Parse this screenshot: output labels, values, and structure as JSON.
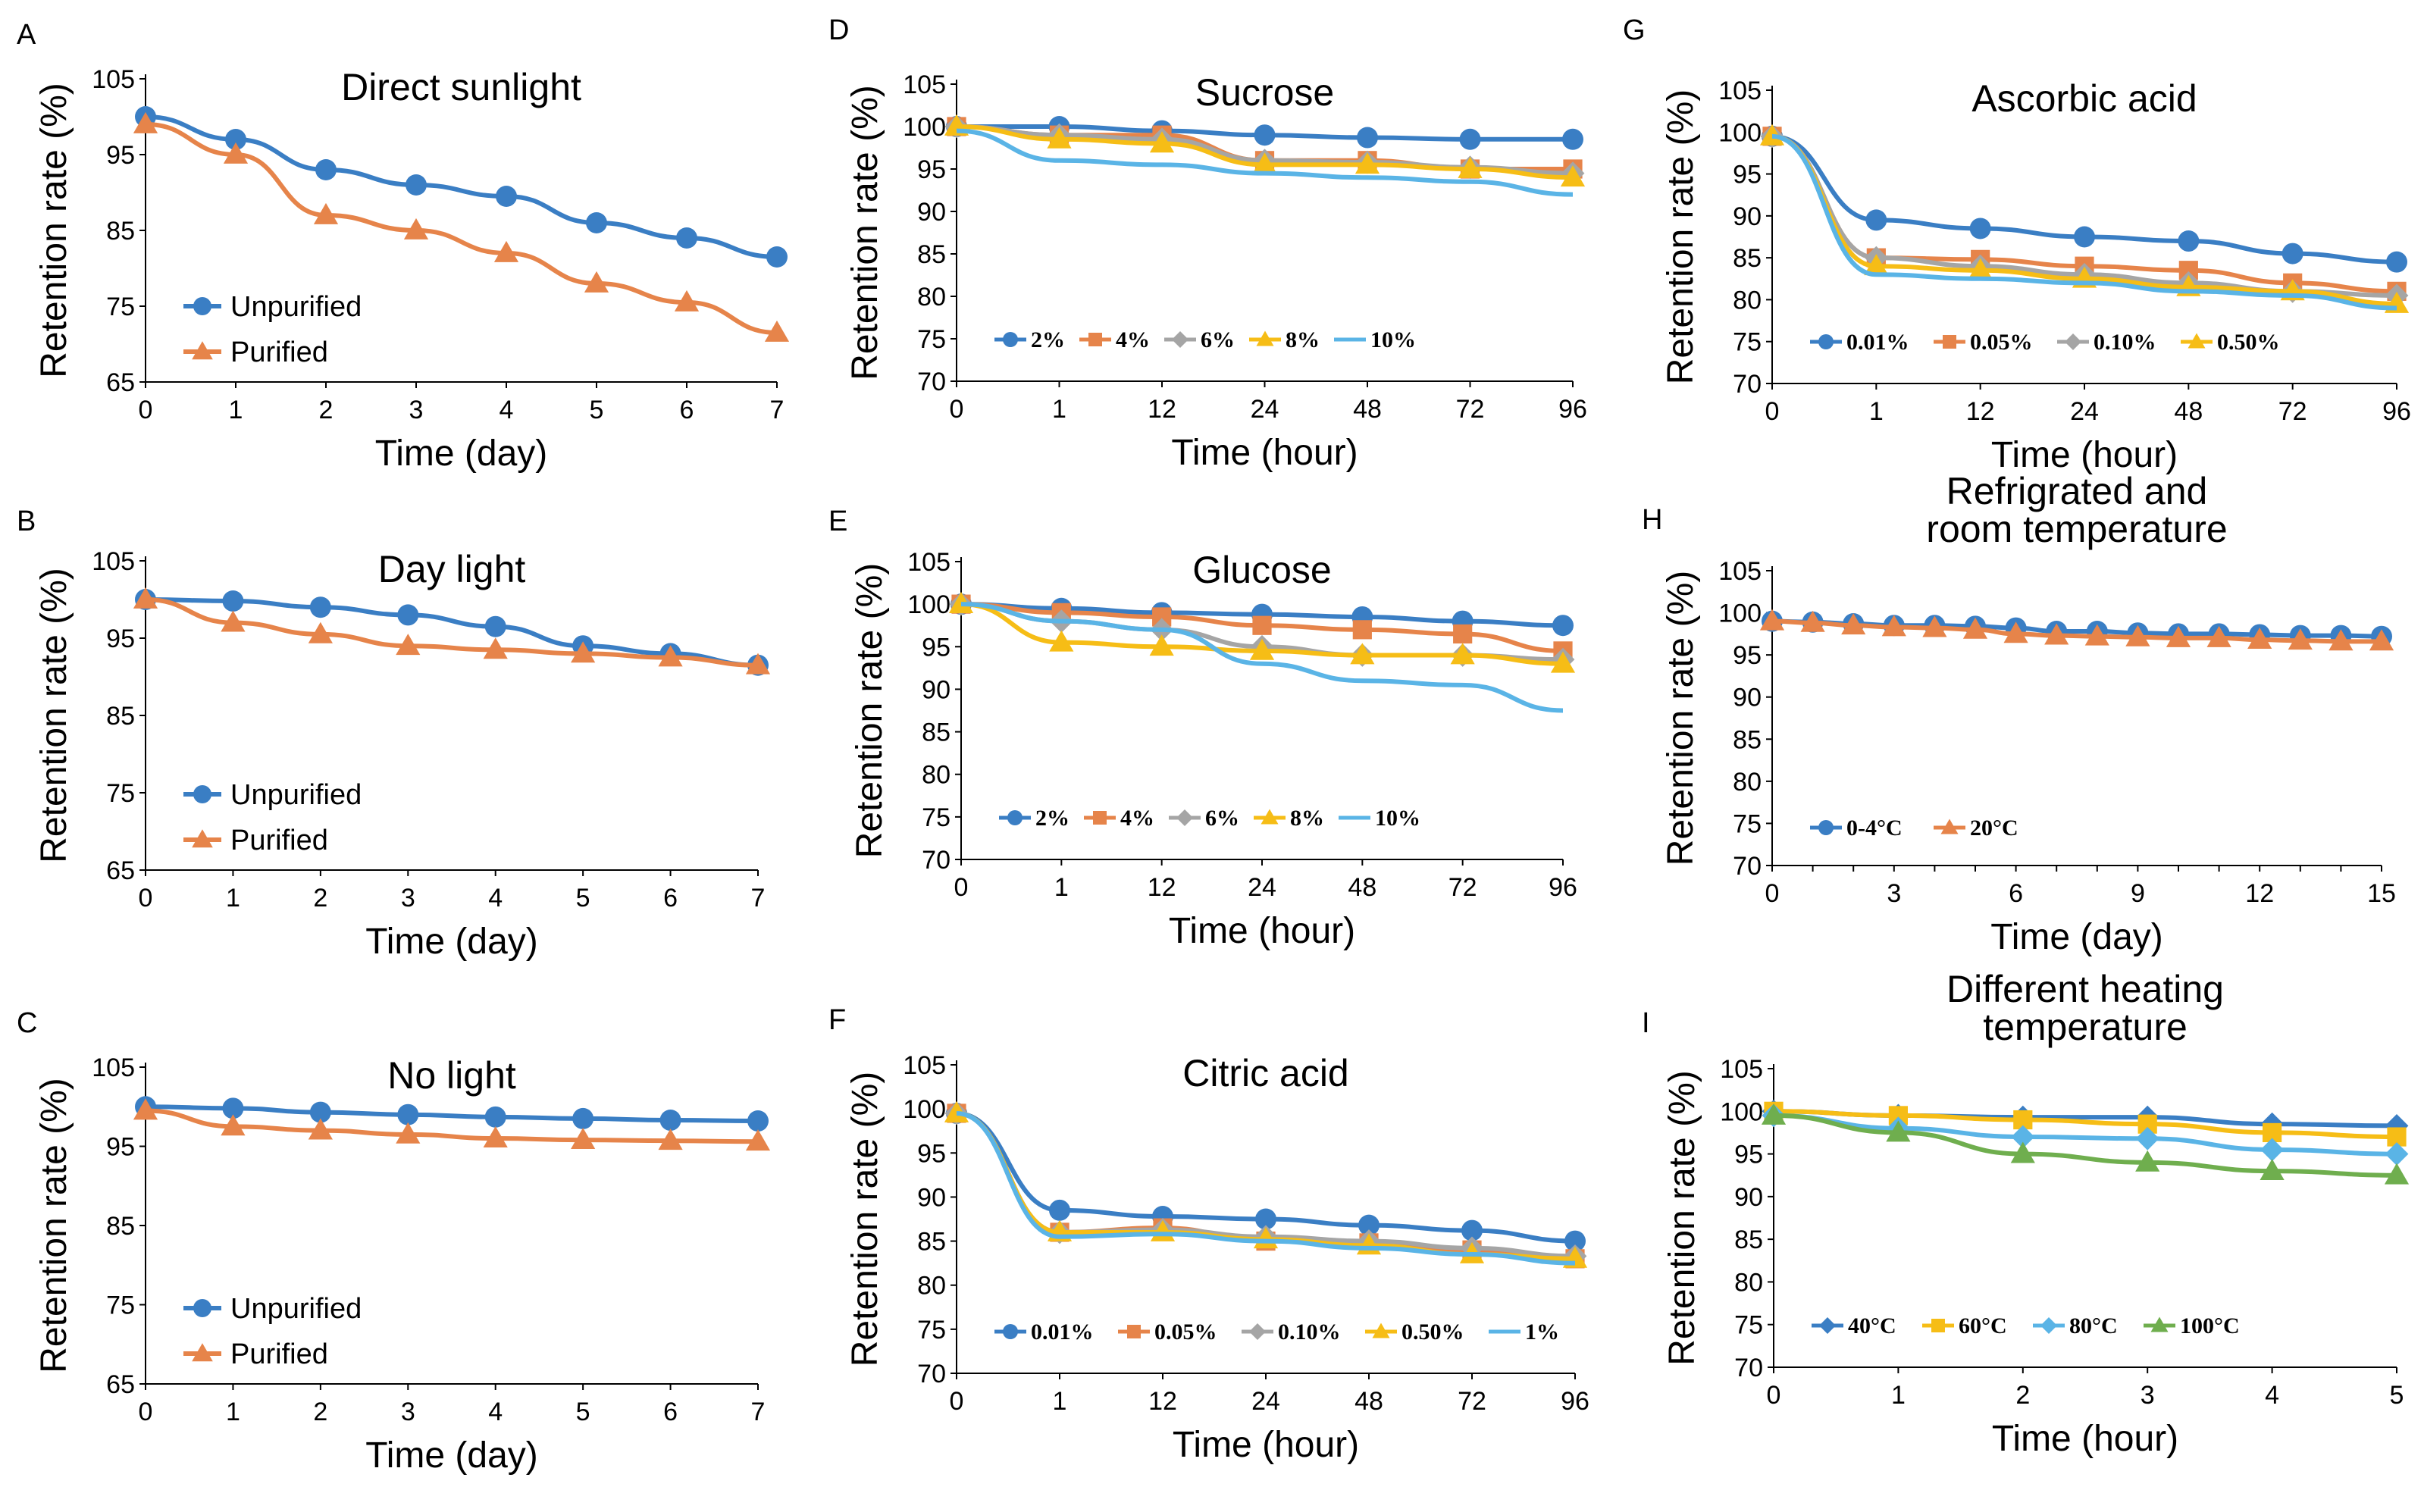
{
  "figure": {
    "colors": {
      "blue": "#3A7EC4",
      "orange": "#E6844A",
      "gray": "#A5A5A5",
      "yellow": "#F6BD16",
      "lightblue": "#5AB4E6",
      "green": "#6FAE4E"
    }
  },
  "chart_data": [
    {
      "panel": "A",
      "type": "line",
      "title": "Direct sunlight",
      "xlabel": "Time (day)",
      "ylabel": "Retention rate (%)",
      "categories": [
        "0",
        "1",
        "2",
        "3",
        "4",
        "5",
        "6",
        "7"
      ],
      "ylim": [
        65,
        105
      ],
      "yticks": [
        65,
        75,
        85,
        95,
        105
      ],
      "legend_position": "bottom-left",
      "series": [
        {
          "name": "Unpurified",
          "color": "blue",
          "marker": "circle",
          "values": [
            100,
            97,
            93,
            91,
            89.5,
            86,
            84,
            81.5
          ]
        },
        {
          "name": "Purified",
          "color": "orange",
          "marker": "triangle",
          "values": [
            99,
            95,
            87,
            85,
            82,
            78,
            75.5,
            71.5
          ]
        }
      ]
    },
    {
      "panel": "B",
      "type": "line",
      "title": "Day light",
      "xlabel": "Time (day)",
      "ylabel": "Retention rate (%)",
      "categories": [
        "0",
        "1",
        "2",
        "3",
        "4",
        "5",
        "6",
        "7"
      ],
      "ylim": [
        65,
        105
      ],
      "yticks": [
        65,
        75,
        85,
        95,
        105
      ],
      "legend_position": "bottom-left",
      "series": [
        {
          "name": "Unpurified",
          "color": "blue",
          "marker": "circle",
          "values": [
            100,
            99.8,
            99,
            98,
            96.5,
            94,
            93,
            91.5
          ]
        },
        {
          "name": "Purified",
          "color": "orange",
          "marker": "triangle",
          "values": [
            100,
            97,
            95.5,
            94,
            93.5,
            93,
            92.5,
            91.5
          ]
        }
      ]
    },
    {
      "panel": "C",
      "type": "line",
      "title": "No light",
      "xlabel": "Time (day)",
      "ylabel": "Retention rate (%)",
      "categories": [
        "0",
        "1",
        "2",
        "3",
        "4",
        "5",
        "6",
        "7"
      ],
      "ylim": [
        65,
        105
      ],
      "yticks": [
        65,
        75,
        85,
        95,
        105
      ],
      "legend_position": "bottom-left",
      "series": [
        {
          "name": "Unpurified",
          "color": "blue",
          "marker": "circle",
          "values": [
            100,
            99.8,
            99.3,
            99,
            98.7,
            98.5,
            98.3,
            98.2
          ]
        },
        {
          "name": "Purified",
          "color": "orange",
          "marker": "triangle",
          "values": [
            99.5,
            97.5,
            97,
            96.5,
            96,
            95.8,
            95.7,
            95.6
          ]
        }
      ]
    },
    {
      "panel": "D",
      "type": "line",
      "title": "Sucrose",
      "xlabel": "Time (hour)",
      "ylabel": "Retention rate (%)",
      "categories": [
        "0",
        "1",
        "12",
        "24",
        "48",
        "72",
        "96"
      ],
      "ylim": [
        70,
        105
      ],
      "yticks": [
        70,
        75,
        80,
        85,
        90,
        95,
        100,
        105
      ],
      "legend_position": "bottom-left",
      "series": [
        {
          "name": "2%",
          "color": "blue",
          "marker": "circle",
          "values": [
            100,
            100,
            99.5,
            99,
            98.7,
            98.5,
            98.5
          ]
        },
        {
          "name": "4%",
          "color": "orange",
          "marker": "square",
          "values": [
            100,
            99,
            99,
            96,
            96,
            95,
            95
          ]
        },
        {
          "name": "6%",
          "color": "gray",
          "marker": "diamond",
          "values": [
            100,
            99,
            98.5,
            96,
            95.8,
            95.2,
            94.5
          ]
        },
        {
          "name": "8%",
          "color": "yellow",
          "marker": "triangle",
          "values": [
            100,
            98.5,
            98,
            95.5,
            95.5,
            95,
            94
          ]
        },
        {
          "name": "10%",
          "color": "lightblue",
          "marker": "none",
          "values": [
            99.5,
            96,
            95.5,
            94.5,
            94,
            93.5,
            92
          ]
        }
      ]
    },
    {
      "panel": "E",
      "type": "line",
      "title": "Glucose",
      "xlabel": "Time (hour)",
      "ylabel": "Retention rate (%)",
      "categories": [
        "0",
        "1",
        "12",
        "24",
        "48",
        "72",
        "96"
      ],
      "ylim": [
        70,
        105
      ],
      "yticks": [
        70,
        75,
        80,
        85,
        90,
        95,
        100,
        105
      ],
      "legend_position": "bottom-left",
      "series": [
        {
          "name": "2%",
          "color": "blue",
          "marker": "circle",
          "values": [
            100,
            99.5,
            99,
            98.8,
            98.5,
            98,
            97.5
          ]
        },
        {
          "name": "4%",
          "color": "orange",
          "marker": "square",
          "values": [
            100,
            99,
            98.5,
            97.5,
            97,
            96.5,
            94.5
          ]
        },
        {
          "name": "6%",
          "color": "gray",
          "marker": "diamond",
          "values": [
            100,
            98,
            97,
            95,
            94,
            94,
            93.5
          ]
        },
        {
          "name": "8%",
          "color": "yellow",
          "marker": "triangle",
          "values": [
            100,
            95.5,
            95,
            94.5,
            94,
            94,
            93
          ]
        },
        {
          "name": "10%",
          "color": "lightblue",
          "marker": "none",
          "values": [
            100,
            98,
            97,
            93,
            91,
            90.5,
            87.5
          ]
        }
      ]
    },
    {
      "panel": "F",
      "type": "line",
      "title": "Citric acid",
      "xlabel": "Time (hour)",
      "ylabel": "Retention rate (%)",
      "categories": [
        "0",
        "1",
        "12",
        "24",
        "48",
        "72",
        "96"
      ],
      "ylim": [
        70,
        105
      ],
      "yticks": [
        70,
        75,
        80,
        85,
        90,
        95,
        100,
        105
      ],
      "legend_position": "bottom-left",
      "series": [
        {
          "name": "0.01%",
          "color": "blue",
          "marker": "circle",
          "values": [
            99.5,
            88.5,
            87.8,
            87.5,
            86.8,
            86.2,
            85
          ]
        },
        {
          "name": "0.05%",
          "color": "orange",
          "marker": "square",
          "values": [
            99.5,
            86,
            86.5,
            85,
            84.8,
            84,
            83
          ]
        },
        {
          "name": "0.10%",
          "color": "gray",
          "marker": "diamond",
          "values": [
            99.5,
            86,
            86.3,
            85.5,
            85,
            84.2,
            83.3
          ]
        },
        {
          "name": "0.50%",
          "color": "yellow",
          "marker": "triangle",
          "values": [
            99.5,
            86,
            86,
            85.2,
            84.5,
            83.5,
            83
          ]
        },
        {
          "name": "1%",
          "color": "lightblue",
          "marker": "none",
          "values": [
            99.5,
            85.5,
            85.8,
            85,
            84.2,
            83.5,
            82.5
          ]
        }
      ]
    },
    {
      "panel": "G",
      "type": "line",
      "title": "Ascorbic acid",
      "xlabel": "Time (hour)",
      "ylabel": "Retention rate (%)",
      "categories": [
        "0",
        "1",
        "12",
        "24",
        "48",
        "72",
        "96"
      ],
      "ylim": [
        70,
        105
      ],
      "yticks": [
        70,
        75,
        80,
        85,
        90,
        95,
        100,
        105
      ],
      "legend_position": "bottom-left",
      "series": [
        {
          "name": "0.01%",
          "color": "blue",
          "marker": "circle",
          "values": [
            99.5,
            89.5,
            88.5,
            87.5,
            87,
            85.5,
            84.5
          ]
        },
        {
          "name": "0.05%",
          "color": "orange",
          "marker": "square",
          "values": [
            99.5,
            85,
            84.8,
            84,
            83.5,
            82,
            81
          ]
        },
        {
          "name": "0.10%",
          "color": "gray",
          "marker": "diamond",
          "values": [
            99.5,
            85,
            84,
            83,
            82,
            81,
            80.5
          ]
        },
        {
          "name": "0.50%",
          "color": "yellow",
          "marker": "triangle",
          "values": [
            99.5,
            84,
            83.5,
            82.5,
            81.5,
            81,
            79.5
          ]
        },
        {
          "name": "",
          "color": "lightblue",
          "marker": "none",
          "values": [
            99.5,
            83,
            82.5,
            82,
            81,
            80.5,
            79
          ]
        }
      ]
    },
    {
      "panel": "H",
      "type": "line",
      "title": "Refrigrated and room temperature",
      "title_lines": [
        "Refrigrated and",
        "room temperature"
      ],
      "xlabel": "Time (day)",
      "ylabel": "Retention rate (%)",
      "categories": [
        "0",
        "1",
        "2",
        "3",
        "4",
        "5",
        "6",
        "7",
        "8",
        "9",
        "10",
        "11",
        "12",
        "13",
        "14",
        "15"
      ],
      "xticks_shown": [
        "0",
        "3",
        "6",
        "9",
        "12",
        "15"
      ],
      "ylim": [
        70,
        105
      ],
      "yticks": [
        70,
        75,
        80,
        85,
        90,
        95,
        100,
        105
      ],
      "legend_position": "bottom-left",
      "series": [
        {
          "name": "0-4°C",
          "color": "blue",
          "marker": "circle",
          "values": [
            99,
            98.9,
            98.7,
            98.5,
            98.5,
            98.4,
            98.2,
            97.8,
            97.8,
            97.6,
            97.5,
            97.5,
            97.4,
            97.3,
            97.3,
            97.2
          ]
        },
        {
          "name": "20°C",
          "color": "orange",
          "marker": "triangle",
          "values": [
            99,
            98.8,
            98.5,
            98.3,
            98.2,
            98,
            97.5,
            97.3,
            97.2,
            97.1,
            97,
            97,
            96.8,
            96.7,
            96.6,
            96.6
          ]
        }
      ]
    },
    {
      "panel": "I",
      "type": "line",
      "title": "Different heating temperature",
      "title_lines": [
        "Different heating",
        "temperature"
      ],
      "xlabel": "Time (hour)",
      "ylabel": "Retention rate (%)",
      "categories": [
        "0",
        "1",
        "2",
        "3",
        "4",
        "5"
      ],
      "ylim": [
        70,
        105
      ],
      "yticks": [
        70,
        75,
        80,
        85,
        90,
        95,
        100,
        105
      ],
      "legend_position": "bottom-left",
      "series": [
        {
          "name": "40°C",
          "color": "blue",
          "marker": "diamond",
          "values": [
            100,
            99.5,
            99.3,
            99.3,
            98.5,
            98.3
          ]
        },
        {
          "name": "60°C",
          "color": "yellow",
          "marker": "square",
          "values": [
            100,
            99.5,
            99,
            98.5,
            97.5,
            97
          ]
        },
        {
          "name": "80°C",
          "color": "lightblue",
          "marker": "diamond",
          "values": [
            99.5,
            98,
            97,
            96.8,
            95.5,
            95
          ]
        },
        {
          "name": "100°C",
          "color": "green",
          "marker": "triangle",
          "values": [
            99.5,
            97.5,
            95,
            94,
            93,
            92.5
          ]
        }
      ]
    }
  ]
}
